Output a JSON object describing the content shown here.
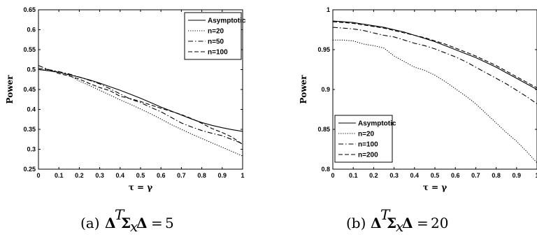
{
  "chart_data": [
    {
      "type": "line",
      "caption_prefix": "(a)",
      "caption_expr": "Δ^T Σ_x Δ = 5",
      "caption_value": "5",
      "xlabel": "τ = γ",
      "ylabel": "Power",
      "xlim": [
        0,
        1
      ],
      "ylim": [
        0.25,
        0.65
      ],
      "xticks": [
        "0",
        "0.1",
        "0.2",
        "0.3",
        "0.4",
        "0.5",
        "0.6",
        "0.7",
        "0.8",
        "0.9",
        "1"
      ],
      "yticks": [
        "0.25",
        "0.3",
        "0.35",
        "0.4",
        "0.45",
        "0.5",
        "0.55",
        "0.6",
        "0.65"
      ],
      "legend_position": "top-right",
      "x": [
        0,
        0.05,
        0.1,
        0.15,
        0.2,
        0.25,
        0.3,
        0.35,
        0.4,
        0.45,
        0.5,
        0.55,
        0.6,
        0.65,
        0.7,
        0.75,
        0.8,
        0.85,
        0.9,
        0.95,
        1.0
      ],
      "series": [
        {
          "name": "Asymptotic",
          "style": "solid",
          "values": [
            0.5,
            0.497,
            0.493,
            0.487,
            0.481,
            0.474,
            0.466,
            0.457,
            0.448,
            0.438,
            0.428,
            0.417,
            0.406,
            0.396,
            0.386,
            0.376,
            0.367,
            0.36,
            0.354,
            0.349,
            0.345
          ]
        },
        {
          "name": "n=20",
          "style": "dotted",
          "values": [
            0.5,
            0.499,
            0.494,
            0.486,
            0.471,
            0.46,
            0.448,
            0.436,
            0.424,
            0.413,
            0.401,
            0.389,
            0.376,
            0.362,
            0.35,
            0.338,
            0.327,
            0.316,
            0.305,
            0.294,
            0.283
          ]
        },
        {
          "name": "n=50",
          "style": "dashdot",
          "values": [
            0.51,
            0.5,
            0.495,
            0.489,
            0.481,
            0.473,
            0.464,
            0.452,
            0.439,
            0.426,
            0.417,
            0.405,
            0.394,
            0.38,
            0.366,
            0.356,
            0.347,
            0.34,
            0.334,
            0.324,
            0.314
          ]
        },
        {
          "name": "n=100",
          "style": "dashed",
          "values": [
            0.503,
            0.5,
            0.49,
            0.484,
            0.476,
            0.465,
            0.455,
            0.447,
            0.433,
            0.427,
            0.42,
            0.411,
            0.403,
            0.395,
            0.387,
            0.377,
            0.365,
            0.352,
            0.342,
            0.33,
            0.312
          ]
        }
      ]
    },
    {
      "type": "line",
      "caption_prefix": "(b)",
      "caption_expr": "Δ^T Σ_x Δ = 20",
      "caption_value": "20",
      "xlabel": "τ = γ",
      "ylabel": "Power",
      "xlim": [
        0,
        1
      ],
      "ylim": [
        0.8,
        1
      ],
      "xticks": [
        "0",
        "0.1",
        "0.2",
        "0.3",
        "0.4",
        "0.5",
        "0.6",
        "0.7",
        "0.8",
        "0.9",
        "1"
      ],
      "yticks": [
        "0.8",
        "0.85",
        "0.9",
        "0.95",
        "1"
      ],
      "legend_position": "bottom-left",
      "x": [
        0,
        0.05,
        0.1,
        0.15,
        0.2,
        0.25,
        0.3,
        0.35,
        0.4,
        0.45,
        0.5,
        0.55,
        0.6,
        0.65,
        0.7,
        0.75,
        0.8,
        0.85,
        0.9,
        0.95,
        1.0
      ],
      "series": [
        {
          "name": "Asymptotic",
          "style": "solid",
          "values": [
            0.986,
            0.985,
            0.984,
            0.982,
            0.98,
            0.978,
            0.975,
            0.972,
            0.968,
            0.964,
            0.96,
            0.955,
            0.95,
            0.945,
            0.94,
            0.934,
            0.928,
            0.921,
            0.914,
            0.907,
            0.9
          ]
        },
        {
          "name": "n=20",
          "style": "dotted",
          "values": [
            0.962,
            0.962,
            0.961,
            0.957,
            0.955,
            0.952,
            0.942,
            0.935,
            0.928,
            0.924,
            0.918,
            0.91,
            0.901,
            0.892,
            0.882,
            0.87,
            0.858,
            0.846,
            0.835,
            0.822,
            0.808
          ]
        },
        {
          "name": "n=100",
          "style": "dashdot",
          "values": [
            0.978,
            0.977,
            0.976,
            0.974,
            0.971,
            0.968,
            0.966,
            0.962,
            0.958,
            0.955,
            0.951,
            0.946,
            0.941,
            0.935,
            0.928,
            0.921,
            0.914,
            0.907,
            0.899,
            0.891,
            0.882
          ]
        },
        {
          "name": "n=200",
          "style": "dashed",
          "values": [
            0.985,
            0.984,
            0.983,
            0.981,
            0.979,
            0.977,
            0.974,
            0.971,
            0.968,
            0.965,
            0.961,
            0.957,
            0.952,
            0.947,
            0.942,
            0.936,
            0.93,
            0.923,
            0.916,
            0.909,
            0.902
          ]
        }
      ]
    }
  ]
}
